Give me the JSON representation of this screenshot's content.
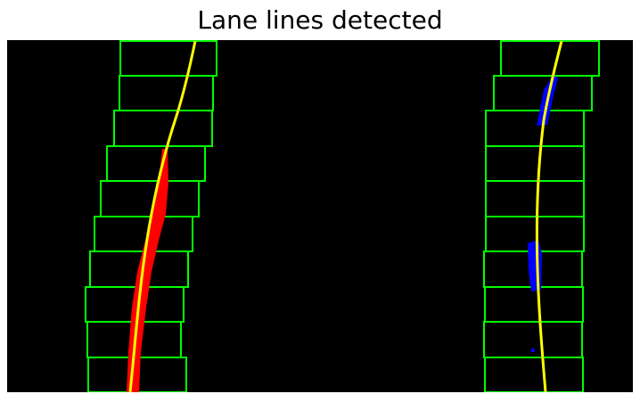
{
  "title": "Lane lines detected",
  "colors": {
    "background": "#000000",
    "window_box": "#00ff00",
    "left_lane_pixels": "#ff0000",
    "right_lane_pixels": "#0000ff",
    "fitted_line": "#ffff00"
  }
}
